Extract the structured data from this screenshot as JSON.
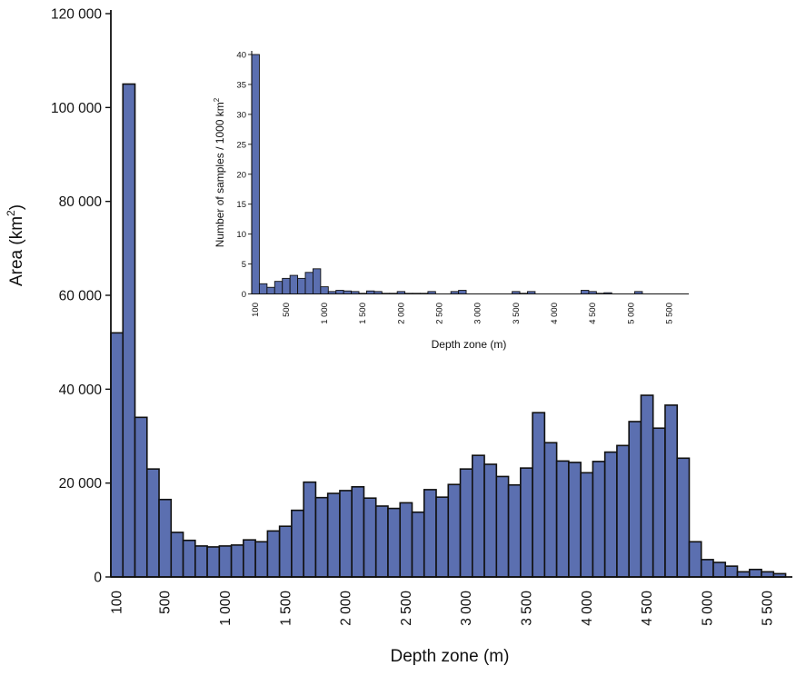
{
  "colors": {
    "bar_fill": "#5b6fb0",
    "bar_edge": "#111111",
    "axis": "#111111"
  },
  "chart_data": [
    {
      "type": "bar",
      "title": "",
      "xlabel": "Depth zone (m)",
      "ylabel": "Area (km²)",
      "ylabel_base": "Area (km",
      "ylabel_sup": "2",
      "ylabel_end": ")",
      "ylim": [
        0,
        120000
      ],
      "y_ticks": [
        {
          "value": 0,
          "label": "0"
        },
        {
          "value": 20000,
          "label": "20 000"
        },
        {
          "value": 40000,
          "label": "40 000"
        },
        {
          "value": 60000,
          "label": "60 000"
        },
        {
          "value": 80000,
          "label": "80 000"
        },
        {
          "value": 100000,
          "label": "100 000"
        },
        {
          "value": 120000,
          "label": "120 000"
        }
      ],
      "x_ticks": [
        {
          "value": 100,
          "label": "100"
        },
        {
          "value": 500,
          "label": "500"
        },
        {
          "value": 1000,
          "label": "1 000"
        },
        {
          "value": 1500,
          "label": "1 500"
        },
        {
          "value": 2000,
          "label": "2 000"
        },
        {
          "value": 2500,
          "label": "2 500"
        },
        {
          "value": 3000,
          "label": "3 000"
        },
        {
          "value": 3500,
          "label": "3 500"
        },
        {
          "value": 4000,
          "label": "4 000"
        },
        {
          "value": 4500,
          "label": "4 500"
        },
        {
          "value": 5000,
          "label": "5 000"
        },
        {
          "value": 5500,
          "label": "5 500"
        }
      ],
      "bin_width_m": 100,
      "bin_start_m": [
        100,
        200,
        300,
        400,
        500,
        600,
        700,
        800,
        900,
        1000,
        1100,
        1200,
        1300,
        1400,
        1500,
        1600,
        1700,
        1800,
        1900,
        2000,
        2100,
        2200,
        2300,
        2400,
        2500,
        2600,
        2700,
        2800,
        2900,
        3000,
        3100,
        3200,
        3300,
        3400,
        3500,
        3600,
        3700,
        3800,
        3900,
        4000,
        4100,
        4200,
        4300,
        4400,
        4500,
        4600,
        4700,
        4800,
        4900,
        5000,
        5100,
        5200,
        5300,
        5400,
        5500,
        5600
      ],
      "values": [
        52000,
        105000,
        34000,
        23000,
        16500,
        9500,
        7800,
        6600,
        6400,
        6600,
        6800,
        7900,
        7500,
        9800,
        10800,
        14200,
        20200,
        16900,
        17800,
        18400,
        19200,
        16800,
        15100,
        14600,
        15800,
        13800,
        18600,
        17000,
        19700,
        23000,
        25900,
        24000,
        21400,
        19600,
        23200,
        35000,
        28600,
        24700,
        24400,
        22200,
        24600,
        26600,
        28000,
        33100,
        38700,
        31700,
        36600,
        25300,
        7500,
        3700,
        3100,
        2300,
        1100,
        1600,
        1100,
        700
      ]
    },
    {
      "type": "bar",
      "title": "",
      "xlabel": "Depth zone (m)",
      "ylabel": "Number of samples / 1000 km²",
      "ylabel_base": "Number of samples / 1000 km",
      "ylabel_sup": "2",
      "ylim": [
        0,
        40
      ],
      "y_ticks": [
        {
          "value": 0,
          "label": "0"
        },
        {
          "value": 5,
          "label": "5"
        },
        {
          "value": 10,
          "label": "10"
        },
        {
          "value": 15,
          "label": "15"
        },
        {
          "value": 20,
          "label": "20"
        },
        {
          "value": 25,
          "label": "25"
        },
        {
          "value": 30,
          "label": "30"
        },
        {
          "value": 35,
          "label": "35"
        },
        {
          "value": 40,
          "label": "40"
        }
      ],
      "x_ticks": [
        {
          "value": 100,
          "label": "100"
        },
        {
          "value": 500,
          "label": "500"
        },
        {
          "value": 1000,
          "label": "1 000"
        },
        {
          "value": 1500,
          "label": "1 500"
        },
        {
          "value": 2000,
          "label": "2 000"
        },
        {
          "value": 2500,
          "label": "2 500"
        },
        {
          "value": 3000,
          "label": "3 000"
        },
        {
          "value": 3500,
          "label": "3 500"
        },
        {
          "value": 4000,
          "label": "4 000"
        },
        {
          "value": 4500,
          "label": "4 500"
        },
        {
          "value": 5000,
          "label": "5 000"
        },
        {
          "value": 5500,
          "label": "5 500"
        }
      ],
      "bin_width_m": 100,
      "bin_start_m": [
        100,
        200,
        300,
        400,
        500,
        600,
        700,
        800,
        900,
        1000,
        1100,
        1200,
        1300,
        1400,
        1500,
        1600,
        1700,
        1800,
        1900,
        2000,
        2100,
        2200,
        2300,
        2400,
        2500,
        2600,
        2700,
        2800,
        2900,
        3000,
        3100,
        3200,
        3300,
        3400,
        3500,
        3600,
        3700,
        3800,
        3900,
        4000,
        4100,
        4200,
        4300,
        4400,
        4500,
        4600,
        4700,
        4800,
        4900,
        5000,
        5100,
        5200,
        5300,
        5400,
        5500,
        5600
      ],
      "values": [
        40,
        1.7,
        1.1,
        2.1,
        2.6,
        3.1,
        2.6,
        3.6,
        4.2,
        1.2,
        0.4,
        0.6,
        0.5,
        0.4,
        0.1,
        0.5,
        0.4,
        0.1,
        0.1,
        0.4,
        0.1,
        0.1,
        0.1,
        0.4,
        0,
        0,
        0.4,
        0.6,
        0,
        0,
        0,
        0,
        0,
        0,
        0.4,
        0.1,
        0.4,
        0,
        0,
        0,
        0,
        0,
        0,
        0.6,
        0.4,
        0.1,
        0.2,
        0,
        0,
        0,
        0.4,
        0,
        0,
        0,
        0,
        0
      ]
    }
  ]
}
